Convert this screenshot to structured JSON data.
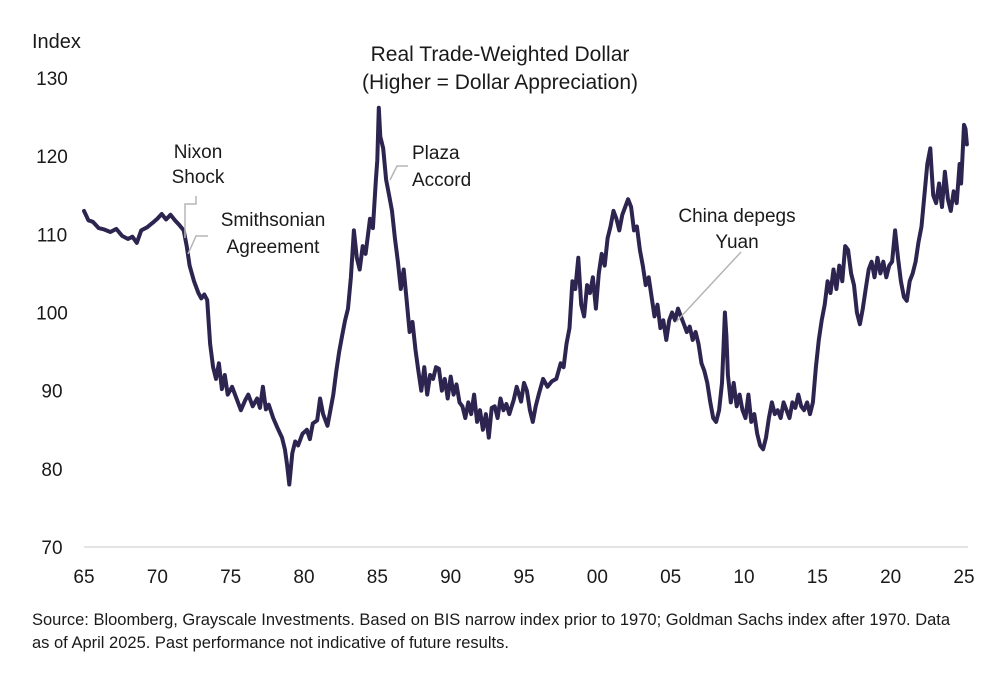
{
  "chart_data": {
    "type": "line",
    "title": "Real Trade-Weighted Dollar",
    "subtitle": "(Higher = Dollar Appreciation)",
    "ylabel": "Index",
    "xlabel": "",
    "ylim": [
      70,
      130
    ],
    "xlim": [
      1965,
      2025.3
    ],
    "yticks": [
      70,
      80,
      90,
      100,
      110,
      120,
      130
    ],
    "xticks": [
      {
        "value": 1965,
        "label": "65"
      },
      {
        "value": 1970,
        "label": "70"
      },
      {
        "value": 1975,
        "label": "75"
      },
      {
        "value": 1980,
        "label": "80"
      },
      {
        "value": 1985,
        "label": "85"
      },
      {
        "value": 1990,
        "label": "90"
      },
      {
        "value": 1995,
        "label": "95"
      },
      {
        "value": 2000,
        "label": "00"
      },
      {
        "value": 2005,
        "label": "05"
      },
      {
        "value": 2010,
        "label": "10"
      },
      {
        "value": 2015,
        "label": "15"
      },
      {
        "value": 2020,
        "label": "20"
      },
      {
        "value": 2025,
        "label": "25"
      }
    ],
    "grid": false,
    "line_color": "#2d2550",
    "series": [
      {
        "name": "",
        "points": [
          [
            1965.0,
            113.0
          ],
          [
            1965.3,
            111.8
          ],
          [
            1965.6,
            111.6
          ],
          [
            1966.0,
            110.8
          ],
          [
            1966.4,
            110.6
          ],
          [
            1966.8,
            110.3
          ],
          [
            1967.2,
            110.7
          ],
          [
            1967.6,
            109.8
          ],
          [
            1968.0,
            109.4
          ],
          [
            1968.3,
            109.7
          ],
          [
            1968.6,
            108.9
          ],
          [
            1968.9,
            110.5
          ],
          [
            1969.3,
            110.9
          ],
          [
            1969.7,
            111.5
          ],
          [
            1970.0,
            112.0
          ],
          [
            1970.3,
            112.6
          ],
          [
            1970.6,
            111.9
          ],
          [
            1970.9,
            112.5
          ],
          [
            1971.2,
            111.8
          ],
          [
            1971.5,
            111.2
          ],
          [
            1971.8,
            110.5
          ],
          [
            1972.0,
            108.5
          ],
          [
            1972.2,
            106.0
          ],
          [
            1972.5,
            104.0
          ],
          [
            1972.8,
            102.5
          ],
          [
            1973.0,
            101.8
          ],
          [
            1973.2,
            102.3
          ],
          [
            1973.4,
            101.6
          ],
          [
            1973.6,
            96.0
          ],
          [
            1973.8,
            93.0
          ],
          [
            1974.0,
            91.5
          ],
          [
            1974.2,
            93.5
          ],
          [
            1974.4,
            90.2
          ],
          [
            1974.6,
            92.0
          ],
          [
            1974.8,
            89.5
          ],
          [
            1975.1,
            90.5
          ],
          [
            1975.4,
            89.0
          ],
          [
            1975.7,
            87.5
          ],
          [
            1976.0,
            88.8
          ],
          [
            1976.2,
            89.5
          ],
          [
            1976.5,
            88.0
          ],
          [
            1976.8,
            89.0
          ],
          [
            1977.0,
            87.8
          ],
          [
            1977.2,
            90.5
          ],
          [
            1977.4,
            87.6
          ],
          [
            1977.6,
            88.2
          ],
          [
            1977.9,
            86.5
          ],
          [
            1978.2,
            85.2
          ],
          [
            1978.5,
            84.0
          ],
          [
            1978.7,
            82.5
          ],
          [
            1978.85,
            80.5
          ],
          [
            1979.0,
            78.0
          ],
          [
            1979.2,
            82.0
          ],
          [
            1979.4,
            83.5
          ],
          [
            1979.6,
            83.0
          ],
          [
            1979.9,
            84.5
          ],
          [
            1980.2,
            85.0
          ],
          [
            1980.4,
            83.8
          ],
          [
            1980.6,
            85.8
          ],
          [
            1980.9,
            86.2
          ],
          [
            1981.1,
            89.0
          ],
          [
            1981.3,
            87.0
          ],
          [
            1981.6,
            85.5
          ],
          [
            1981.8,
            87.5
          ],
          [
            1982.0,
            89.5
          ],
          [
            1982.2,
            92.5
          ],
          [
            1982.4,
            95.0
          ],
          [
            1982.6,
            97.0
          ],
          [
            1982.8,
            99.0
          ],
          [
            1983.0,
            100.5
          ],
          [
            1983.2,
            104.5
          ],
          [
            1983.4,
            110.5
          ],
          [
            1983.6,
            107.0
          ],
          [
            1983.8,
            105.5
          ],
          [
            1984.0,
            108.5
          ],
          [
            1984.2,
            107.5
          ],
          [
            1984.5,
            112.0
          ],
          [
            1984.7,
            110.8
          ],
          [
            1984.9,
            117.0
          ],
          [
            1985.0,
            119.5
          ],
          [
            1985.1,
            126.2
          ],
          [
            1985.2,
            122.5
          ],
          [
            1985.4,
            121.0
          ],
          [
            1985.6,
            117.0
          ],
          [
            1985.8,
            115.0
          ],
          [
            1986.0,
            113.0
          ],
          [
            1986.2,
            109.5
          ],
          [
            1986.4,
            106.5
          ],
          [
            1986.6,
            103.0
          ],
          [
            1986.8,
            105.5
          ],
          [
            1987.0,
            101.5
          ],
          [
            1987.2,
            97.5
          ],
          [
            1987.4,
            98.8
          ],
          [
            1987.6,
            95.2
          ],
          [
            1987.8,
            92.5
          ],
          [
            1988.0,
            90.0
          ],
          [
            1988.2,
            93.0
          ],
          [
            1988.4,
            89.5
          ],
          [
            1988.6,
            92.0
          ],
          [
            1988.8,
            91.5
          ],
          [
            1989.0,
            93.0
          ],
          [
            1989.2,
            92.8
          ],
          [
            1989.4,
            90.0
          ],
          [
            1989.6,
            91.5
          ],
          [
            1989.8,
            89.0
          ],
          [
            1990.0,
            91.8
          ],
          [
            1990.2,
            89.5
          ],
          [
            1990.4,
            90.8
          ],
          [
            1990.6,
            88.5
          ],
          [
            1990.8,
            88.0
          ],
          [
            1991.0,
            86.5
          ],
          [
            1991.2,
            88.5
          ],
          [
            1991.4,
            87.0
          ],
          [
            1991.6,
            89.5
          ],
          [
            1991.8,
            86.0
          ],
          [
            1992.0,
            87.5
          ],
          [
            1992.2,
            85.0
          ],
          [
            1992.4,
            87.0
          ],
          [
            1992.6,
            84.0
          ],
          [
            1992.8,
            87.8
          ],
          [
            1993.0,
            88.0
          ],
          [
            1993.2,
            86.5
          ],
          [
            1993.4,
            89.0
          ],
          [
            1993.6,
            87.5
          ],
          [
            1993.8,
            88.3
          ],
          [
            1994.0,
            87.0
          ],
          [
            1994.3,
            88.8
          ],
          [
            1994.5,
            90.5
          ],
          [
            1994.8,
            88.6
          ],
          [
            1995.0,
            91.0
          ],
          [
            1995.2,
            90.0
          ],
          [
            1995.4,
            87.5
          ],
          [
            1995.6,
            86.0
          ],
          [
            1995.8,
            88.0
          ],
          [
            1996.0,
            89.5
          ],
          [
            1996.3,
            91.5
          ],
          [
            1996.6,
            90.5
          ],
          [
            1996.9,
            91.2
          ],
          [
            1997.2,
            91.5
          ],
          [
            1997.5,
            93.5
          ],
          [
            1997.7,
            93.0
          ],
          [
            1997.9,
            96.0
          ],
          [
            1998.1,
            98.0
          ],
          [
            1998.3,
            104.0
          ],
          [
            1998.5,
            103.0
          ],
          [
            1998.7,
            107.0
          ],
          [
            1998.9,
            101.0
          ],
          [
            1999.1,
            99.5
          ],
          [
            1999.3,
            103.5
          ],
          [
            1999.5,
            102.5
          ],
          [
            1999.7,
            104.5
          ],
          [
            1999.9,
            100.5
          ],
          [
            2000.1,
            105.0
          ],
          [
            2000.3,
            107.5
          ],
          [
            2000.5,
            106.0
          ],
          [
            2000.7,
            109.5
          ],
          [
            2000.9,
            111.0
          ],
          [
            2001.1,
            113.0
          ],
          [
            2001.3,
            112.0
          ],
          [
            2001.5,
            110.5
          ],
          [
            2001.7,
            112.5
          ],
          [
            2001.9,
            113.5
          ],
          [
            2002.1,
            114.5
          ],
          [
            2002.3,
            113.5
          ],
          [
            2002.5,
            110.5
          ],
          [
            2002.7,
            111.0
          ],
          [
            2002.9,
            108.0
          ],
          [
            2003.1,
            106.0
          ],
          [
            2003.3,
            103.5
          ],
          [
            2003.5,
            104.5
          ],
          [
            2003.7,
            102.0
          ],
          [
            2003.9,
            99.5
          ],
          [
            2004.1,
            101.0
          ],
          [
            2004.3,
            98.0
          ],
          [
            2004.5,
            99.0
          ],
          [
            2004.7,
            96.5
          ],
          [
            2004.9,
            99.0
          ],
          [
            2005.1,
            100.0
          ],
          [
            2005.3,
            99.0
          ],
          [
            2005.5,
            100.5
          ],
          [
            2005.7,
            99.5
          ],
          [
            2005.9,
            98.5
          ],
          [
            2006.1,
            97.5
          ],
          [
            2006.3,
            98.2
          ],
          [
            2006.5,
            96.5
          ],
          [
            2006.7,
            97.5
          ],
          [
            2006.9,
            96.0
          ],
          [
            2007.1,
            93.5
          ],
          [
            2007.3,
            92.5
          ],
          [
            2007.5,
            91.0
          ],
          [
            2007.7,
            88.5
          ],
          [
            2007.9,
            86.5
          ],
          [
            2008.1,
            86.0
          ],
          [
            2008.3,
            87.5
          ],
          [
            2008.5,
            91.0
          ],
          [
            2008.6,
            95.5
          ],
          [
            2008.7,
            100.0
          ],
          [
            2008.8,
            97.0
          ],
          [
            2008.9,
            92.0
          ],
          [
            2009.1,
            88.5
          ],
          [
            2009.3,
            91.0
          ],
          [
            2009.5,
            88.0
          ],
          [
            2009.7,
            89.5
          ],
          [
            2009.9,
            87.5
          ],
          [
            2010.1,
            86.5
          ],
          [
            2010.3,
            89.5
          ],
          [
            2010.5,
            86.0
          ],
          [
            2010.7,
            87.0
          ],
          [
            2010.9,
            84.5
          ],
          [
            2011.1,
            83.0
          ],
          [
            2011.3,
            82.5
          ],
          [
            2011.5,
            84.0
          ],
          [
            2011.7,
            86.5
          ],
          [
            2011.9,
            88.5
          ],
          [
            2012.1,
            87.0
          ],
          [
            2012.3,
            87.5
          ],
          [
            2012.5,
            86.5
          ],
          [
            2012.7,
            88.5
          ],
          [
            2012.9,
            87.5
          ],
          [
            2013.1,
            86.5
          ],
          [
            2013.3,
            88.5
          ],
          [
            2013.5,
            87.8
          ],
          [
            2013.7,
            89.5
          ],
          [
            2013.9,
            88.0
          ],
          [
            2014.1,
            87.5
          ],
          [
            2014.3,
            88.5
          ],
          [
            2014.5,
            87.0
          ],
          [
            2014.7,
            88.5
          ],
          [
            2014.9,
            93.0
          ],
          [
            2015.1,
            96.5
          ],
          [
            2015.3,
            99.0
          ],
          [
            2015.5,
            101.0
          ],
          [
            2015.7,
            104.0
          ],
          [
            2015.9,
            102.5
          ],
          [
            2016.1,
            105.5
          ],
          [
            2016.3,
            103.0
          ],
          [
            2016.5,
            106.0
          ],
          [
            2016.7,
            104.0
          ],
          [
            2016.9,
            108.5
          ],
          [
            2017.1,
            108.0
          ],
          [
            2017.3,
            105.0
          ],
          [
            2017.5,
            103.5
          ],
          [
            2017.7,
            100.0
          ],
          [
            2017.9,
            98.5
          ],
          [
            2018.1,
            100.5
          ],
          [
            2018.3,
            103.0
          ],
          [
            2018.5,
            105.5
          ],
          [
            2018.7,
            106.5
          ],
          [
            2018.9,
            104.5
          ],
          [
            2019.1,
            107.0
          ],
          [
            2019.3,
            105.0
          ],
          [
            2019.5,
            106.5
          ],
          [
            2019.7,
            104.5
          ],
          [
            2019.9,
            106.0
          ],
          [
            2020.1,
            106.5
          ],
          [
            2020.3,
            110.5
          ],
          [
            2020.5,
            107.0
          ],
          [
            2020.7,
            104.0
          ],
          [
            2020.9,
            102.0
          ],
          [
            2021.1,
            101.5
          ],
          [
            2021.3,
            104.0
          ],
          [
            2021.5,
            105.0
          ],
          [
            2021.7,
            106.5
          ],
          [
            2021.9,
            109.0
          ],
          [
            2022.1,
            111.0
          ],
          [
            2022.3,
            115.0
          ],
          [
            2022.5,
            119.0
          ],
          [
            2022.7,
            121.0
          ],
          [
            2022.8,
            118.0
          ],
          [
            2022.9,
            115.0
          ],
          [
            2023.1,
            114.0
          ],
          [
            2023.3,
            116.5
          ],
          [
            2023.5,
            113.5
          ],
          [
            2023.7,
            118.0
          ],
          [
            2023.9,
            114.5
          ],
          [
            2024.1,
            113.0
          ],
          [
            2024.3,
            115.5
          ],
          [
            2024.5,
            114.0
          ],
          [
            2024.7,
            119.0
          ],
          [
            2024.8,
            116.5
          ],
          [
            2024.9,
            120.0
          ],
          [
            2025.0,
            124.0
          ],
          [
            2025.1,
            123.5
          ],
          [
            2025.2,
            121.5
          ]
        ]
      }
    ],
    "annotations": [
      {
        "lines": [
          "Nixon",
          "Shock"
        ],
        "x": 1971.6
      },
      {
        "lines": [
          "Smithsonian",
          "Agreement"
        ],
        "x": 1972.0
      },
      {
        "lines": [
          "Plaza",
          "Accord"
        ],
        "x": 1985.7
      },
      {
        "lines": [
          "China depegs",
          "Yuan"
        ],
        "x": 2005.2
      }
    ]
  },
  "source": "Source: Bloomberg, Grayscale Investments. Based on BIS narrow index prior to 1970; Goldman Sachs index after 1970. Data as of April 2025. Past performance not indicative of future results."
}
